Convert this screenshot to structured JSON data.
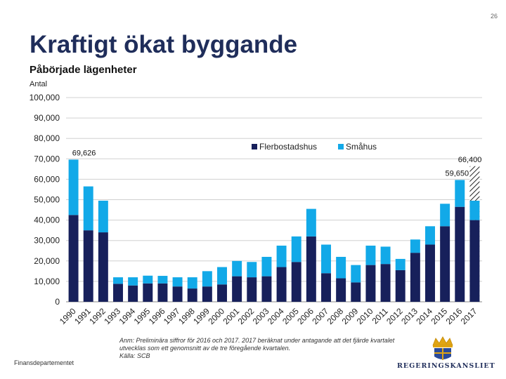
{
  "page_number": "26",
  "title": "Kraftigt ökat byggande",
  "subtitle": "Påbörjade lägenheter",
  "unit_label": "Antal",
  "footer": {
    "department": "Finansdepartementet",
    "note_line1": "Anm: Preliminära siffror för 2016 och 2017. 2017 beräknat under antagande att det fjärde kvartalet",
    "note_line2": "utvecklas som ett genomsnitt av de tre föregående kvartalen.",
    "note_line3": "Källa: SCB",
    "logo_text": "REGERINGSKANSLIET"
  },
  "colors": {
    "flerbostadshus": "#17205b",
    "smahus": "#12a9e8",
    "title": "#1f2d5a",
    "grid": "#d0d0d0"
  },
  "chart_data": {
    "type": "bar",
    "stacked": true,
    "categories": [
      "1990",
      "1991",
      "1992",
      "1993",
      "1994",
      "1995",
      "1996",
      "1997",
      "1998",
      "1999",
      "2000",
      "2001",
      "2002",
      "2003",
      "2004",
      "2005",
      "2006",
      "2007",
      "2008",
      "2009",
      "2010",
      "2011",
      "2012",
      "2013",
      "2014",
      "2015",
      "2016",
      "2017"
    ],
    "series": [
      {
        "name": "Flerbostadshus",
        "values": [
          42500,
          35000,
          34000,
          8800,
          8000,
          9000,
          9000,
          7500,
          6500,
          7500,
          8500,
          12500,
          12000,
          12500,
          17000,
          19500,
          32000,
          14000,
          11500,
          9500,
          18000,
          18500,
          15500,
          24000,
          28000,
          37000,
          46500,
          40000
        ]
      },
      {
        "name": "Småhus",
        "values": [
          27126,
          21500,
          15500,
          3200,
          4000,
          3800,
          3700,
          4500,
          5500,
          7500,
          8500,
          7500,
          7500,
          9500,
          10500,
          12500,
          13500,
          14000,
          10500,
          8500,
          9500,
          8500,
          5500,
          6500,
          9000,
          11000,
          13150,
          9500
        ]
      }
    ],
    "overlay": {
      "category": "2017",
      "value": 66400,
      "pattern": "hatched"
    },
    "data_labels": [
      {
        "category": "1990",
        "text": "69,626"
      },
      {
        "category": "2016",
        "text": "59,650"
      },
      {
        "category": "2017",
        "text": "66,400"
      }
    ],
    "ylim": [
      0,
      100000
    ],
    "y_ticks": [
      0,
      10000,
      20000,
      30000,
      40000,
      50000,
      60000,
      70000,
      80000,
      90000,
      100000
    ],
    "y_tick_labels": [
      "0",
      "10,000",
      "20,000",
      "30,000",
      "40,000",
      "50,000",
      "60,000",
      "70,000",
      "80,000",
      "90,000",
      "100,000"
    ],
    "grid": true,
    "legend_position": "top-center",
    "xlabel": "",
    "ylabel": ""
  }
}
